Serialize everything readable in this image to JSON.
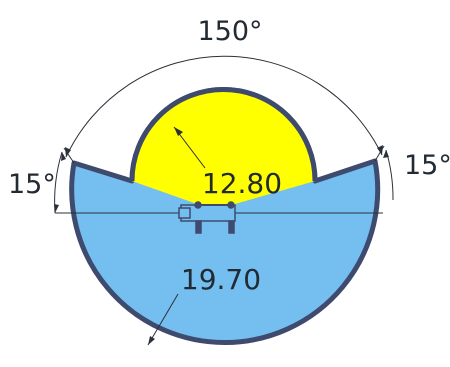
{
  "dimensions": {
    "top_angle": "150°",
    "left_angle": "15°",
    "right_angle": "15°",
    "inner_radius": "12.80",
    "outer_radius": "19.70"
  },
  "colors": {
    "outer_fill": "#74bff0",
    "inner_fill": "#ffff00",
    "outline": "#3e4a6e",
    "dimension_line": "#2b3138",
    "background": "#ffffff"
  }
}
